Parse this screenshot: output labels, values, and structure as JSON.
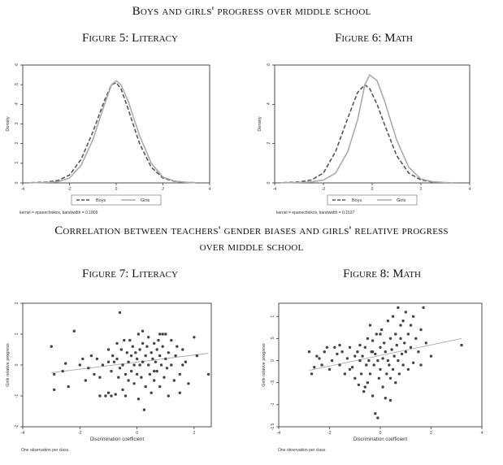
{
  "section1_title": "Boys and girls' progress over middle school",
  "section2_title_line1": "Correlation between teachers' gender biases and girls' relative progress",
  "section2_title_line2": "over middle school",
  "density_note_literacy": "kernel = epanechnikov, bandwidth = 0.1809",
  "density_note_math": "kernel = epanechnikov, bandwidth = 0.1537",
  "scatter_note": "One observation per class.",
  "colors": {
    "boys": "#555555",
    "girls": "#aaaaaa",
    "points": "#444444",
    "fit": "#aaaaaa",
    "frame": "#222222"
  },
  "chart_data": [
    {
      "id": "fig5",
      "figure_title": "Figure 5: Literacy",
      "type": "line",
      "ylabel": "Density",
      "xlim": [
        -4,
        4
      ],
      "ylim": [
        0,
        0.6
      ],
      "xticks": [
        -4,
        -2,
        0,
        2,
        4
      ],
      "xtick_labels": [
        "-4",
        "-2",
        "0",
        "2",
        "4"
      ],
      "yticks": [
        0,
        0.1,
        0.2,
        0.3,
        0.4,
        0.5,
        0.6
      ],
      "ytick_labels": [
        "0",
        ".1",
        ".2",
        ".3",
        ".4",
        ".5",
        ".6"
      ],
      "legend": [
        "Boys",
        "Girls"
      ],
      "legend_position": "bottom",
      "series": [
        {
          "name": "Boys",
          "style": "dashed",
          "x": [
            -3.9,
            -3.0,
            -2.5,
            -2.0,
            -1.5,
            -1.0,
            -0.5,
            -0.2,
            0.0,
            0.2,
            0.5,
            1.0,
            1.5,
            2.0,
            2.5,
            3.0,
            3.4
          ],
          "y": [
            0.0,
            0.004,
            0.012,
            0.04,
            0.12,
            0.26,
            0.42,
            0.5,
            0.51,
            0.48,
            0.38,
            0.2,
            0.08,
            0.025,
            0.008,
            0.003,
            0.001
          ]
        },
        {
          "name": "Girls",
          "style": "solid",
          "x": [
            -3.9,
            -3.0,
            -2.5,
            -2.0,
            -1.5,
            -1.0,
            -0.5,
            -0.2,
            0.0,
            0.2,
            0.5,
            1.0,
            1.5,
            2.0,
            2.5,
            3.0,
            3.4
          ],
          "y": [
            0.0,
            0.002,
            0.006,
            0.025,
            0.09,
            0.22,
            0.4,
            0.5,
            0.52,
            0.5,
            0.42,
            0.24,
            0.1,
            0.03,
            0.009,
            0.003,
            0.001
          ]
        }
      ]
    },
    {
      "id": "fig6",
      "figure_title": "Figure 6: Math",
      "type": "line",
      "ylabel": "Density",
      "xlim": [
        -4,
        4
      ],
      "ylim": [
        0,
        0.6
      ],
      "xticks": [
        -4,
        -2,
        0,
        2,
        4
      ],
      "xtick_labels": [
        "-4",
        "-2",
        "0",
        "2",
        "4"
      ],
      "yticks": [
        0,
        0.2,
        0.4,
        0.6
      ],
      "ytick_labels": [
        "0",
        ".2",
        ".4",
        ".6"
      ],
      "legend": [
        "Boys",
        "Girls"
      ],
      "legend_position": "bottom",
      "series": [
        {
          "name": "Boys",
          "style": "dashed",
          "x": [
            -3.9,
            -3.0,
            -2.5,
            -2.0,
            -1.5,
            -1.0,
            -0.6,
            -0.3,
            -0.1,
            0.2,
            0.5,
            1.0,
            1.5,
            2.0,
            2.5,
            3.0,
            3.5
          ],
          "y": [
            0.0,
            0.005,
            0.015,
            0.05,
            0.16,
            0.33,
            0.46,
            0.5,
            0.48,
            0.4,
            0.3,
            0.14,
            0.05,
            0.015,
            0.004,
            0.001,
            0.0
          ]
        },
        {
          "name": "Girls",
          "style": "solid",
          "x": [
            -3.9,
            -3.0,
            -2.5,
            -2.0,
            -1.5,
            -1.0,
            -0.6,
            -0.3,
            -0.1,
            0.2,
            0.5,
            1.0,
            1.5,
            2.0,
            2.5,
            3.0,
            3.5
          ],
          "y": [
            0.0,
            0.002,
            0.005,
            0.015,
            0.05,
            0.16,
            0.32,
            0.5,
            0.55,
            0.52,
            0.42,
            0.22,
            0.08,
            0.02,
            0.006,
            0.002,
            0.0
          ]
        }
      ]
    },
    {
      "id": "fig7",
      "figure_title": "Figure 7: Literacy",
      "type": "scatter",
      "xlabel": "Discrimination coefficient",
      "ylabel": "Girls relative progress",
      "xlim": [
        -4,
        2.6
      ],
      "ylim": [
        -2,
        2
      ],
      "xticks": [
        -4,
        -2,
        0,
        2
      ],
      "xtick_labels": [
        "-4",
        "-2",
        "0",
        "2"
      ],
      "yticks": [
        -2,
        -1,
        0,
        1,
        2
      ],
      "ytick_labels": [
        "-2",
        "-1",
        "0",
        "1",
        "2"
      ],
      "fit_line": {
        "x": [
          -3.0,
          2.5
        ],
        "y": [
          -0.25,
          0.38
        ]
      },
      "points": [
        [
          -3.0,
          0.6
        ],
        [
          -2.9,
          -0.8
        ],
        [
          -2.9,
          -0.3
        ],
        [
          -2.5,
          0.05
        ],
        [
          -2.4,
          -0.7
        ],
        [
          -2.2,
          1.1
        ],
        [
          -2.0,
          0.0
        ],
        [
          -1.9,
          0.2
        ],
        [
          -1.8,
          -0.5
        ],
        [
          -1.7,
          -0.1
        ],
        [
          -1.6,
          0.3
        ],
        [
          -1.5,
          -0.3
        ],
        [
          -1.4,
          0.2
        ],
        [
          -1.3,
          -0.4
        ],
        [
          -1.2,
          0.0
        ],
        [
          -1.1,
          -1.0
        ],
        [
          -1.0,
          -0.9
        ],
        [
          -1.0,
          0.5
        ],
        [
          -0.9,
          -1.0
        ],
        [
          -0.9,
          -0.2
        ],
        [
          -0.85,
          0.3
        ],
        [
          -0.8,
          0.1
        ],
        [
          -0.75,
          -0.95
        ],
        [
          -0.7,
          0.2
        ],
        [
          -0.65,
          -0.4
        ],
        [
          -0.6,
          1.7
        ],
        [
          -0.6,
          -0.1
        ],
        [
          -0.55,
          0.5
        ],
        [
          -0.5,
          -0.8
        ],
        [
          -0.5,
          0.0
        ],
        [
          -0.45,
          0.8
        ],
        [
          -0.4,
          -0.3
        ],
        [
          -0.35,
          0.4
        ],
        [
          -0.3,
          0.1
        ],
        [
          -0.3,
          -0.5
        ],
        [
          -0.25,
          0.8
        ],
        [
          -0.2,
          -0.2
        ],
        [
          -0.2,
          0.3
        ],
        [
          -0.15,
          0.6
        ],
        [
          -0.1,
          0.0
        ],
        [
          -0.1,
          -0.6
        ],
        [
          -0.05,
          0.4
        ],
        [
          0.0,
          0.2
        ],
        [
          0.0,
          -0.3
        ],
        [
          0.05,
          1.0
        ],
        [
          0.05,
          -1.1
        ],
        [
          0.1,
          0.0
        ],
        [
          0.1,
          0.5
        ],
        [
          0.15,
          -0.4
        ],
        [
          0.2,
          0.1
        ],
        [
          0.2,
          1.1
        ],
        [
          0.25,
          -1.45
        ],
        [
          0.3,
          0.3
        ],
        [
          0.3,
          -0.7
        ],
        [
          0.35,
          0.6
        ],
        [
          0.4,
          0.0
        ],
        [
          0.4,
          0.9
        ],
        [
          0.45,
          -0.3
        ],
        [
          0.5,
          0.4
        ],
        [
          0.5,
          -0.9
        ],
        [
          0.55,
          0.2
        ],
        [
          0.6,
          0.7
        ],
        [
          0.6,
          -0.5
        ],
        [
          0.65,
          0.1
        ],
        [
          0.7,
          0.5
        ],
        [
          0.7,
          -0.2
        ],
        [
          0.75,
          0.8
        ],
        [
          0.8,
          0.3
        ],
        [
          0.8,
          -0.7
        ],
        [
          0.85,
          0.0
        ],
        [
          0.9,
          0.6
        ],
        [
          0.9,
          1.0
        ],
        [
          0.95,
          -0.4
        ],
        [
          1.0,
          0.2
        ],
        [
          1.0,
          1.0
        ],
        [
          1.05,
          -0.1
        ],
        [
          1.1,
          0.4
        ],
        [
          1.1,
          -1.0
        ],
        [
          1.2,
          0.8
        ],
        [
          1.2,
          0.0
        ],
        [
          1.3,
          -0.5
        ],
        [
          1.35,
          0.3
        ],
        [
          1.4,
          0.6
        ],
        [
          1.5,
          -0.3
        ],
        [
          1.6,
          0.5
        ],
        [
          1.7,
          0.1
        ],
        [
          1.8,
          -0.6
        ],
        [
          2.0,
          0.9
        ],
        [
          2.1,
          0.3
        ],
        [
          2.5,
          -0.3
        ],
        [
          -1.3,
          -1.0
        ],
        [
          -0.4,
          -1.0
        ],
        [
          0.6,
          -0.2
        ],
        [
          1.5,
          -0.9
        ],
        [
          -2.6,
          -0.2
        ],
        [
          -1.0,
          0.1
        ],
        [
          -0.7,
          0.7
        ],
        [
          0.2,
          0.7
        ],
        [
          0.8,
          1.0
        ],
        [
          1.6,
          0.0
        ]
      ]
    },
    {
      "id": "fig8",
      "figure_title": "Figure 8: Math",
      "type": "scatter",
      "xlabel": "Discrimination coefficient",
      "ylabel": "Girls relative progress",
      "xlim": [
        -4,
        4
      ],
      "ylim": [
        -1.5,
        1.3
      ],
      "xticks": [
        -4,
        -2,
        0,
        2,
        4
      ],
      "xtick_labels": [
        "-4",
        "-2",
        "0",
        "2",
        "4"
      ],
      "yticks": [
        -1.5,
        -1,
        -0.5,
        0,
        0.5,
        1
      ],
      "ytick_labels": [
        "-1.5",
        "-1",
        "-.5",
        "0",
        ".5",
        "1"
      ],
      "fit_line": {
        "x": [
          -2.8,
          3.2
        ],
        "y": [
          -0.22,
          0.5
        ]
      },
      "points": [
        [
          -2.8,
          0.2
        ],
        [
          -2.7,
          -0.3
        ],
        [
          -2.6,
          -0.15
        ],
        [
          -2.5,
          0.1
        ],
        [
          -2.4,
          0.05
        ],
        [
          -2.3,
          -0.1
        ],
        [
          -2.1,
          0.3
        ],
        [
          -2.0,
          -0.2
        ],
        [
          -1.9,
          0.0
        ],
        [
          -1.8,
          0.3
        ],
        [
          -1.7,
          0.15
        ],
        [
          -1.6,
          -0.1
        ],
        [
          -1.5,
          0.2
        ],
        [
          -1.4,
          -0.3
        ],
        [
          -1.3,
          0.05
        ],
        [
          -1.2,
          0.3
        ],
        [
          -1.1,
          -0.15
        ],
        [
          -1.0,
          0.1
        ],
        [
          -1.0,
          -0.4
        ],
        [
          -0.9,
          0.2
        ],
        [
          -0.85,
          -0.55
        ],
        [
          -0.8,
          0.0
        ],
        [
          -0.8,
          0.35
        ],
        [
          -0.75,
          -0.3
        ],
        [
          -0.7,
          0.1
        ],
        [
          -0.65,
          -0.7
        ],
        [
          -0.6,
          0.3
        ],
        [
          -0.55,
          -0.1
        ],
        [
          -0.5,
          0.5
        ],
        [
          -0.5,
          -0.5
        ],
        [
          -0.45,
          0.0
        ],
        [
          -0.4,
          0.8
        ],
        [
          -0.4,
          -0.3
        ],
        [
          -0.35,
          0.2
        ],
        [
          -0.3,
          -0.8
        ],
        [
          -0.3,
          0.45
        ],
        [
          -0.25,
          -0.1
        ],
        [
          -0.2,
          0.15
        ],
        [
          -0.2,
          -1.2
        ],
        [
          -0.15,
          0.6
        ],
        [
          -0.1,
          -1.3
        ],
        [
          -0.1,
          0.0
        ],
        [
          -0.05,
          -0.4
        ],
        [
          0.0,
          0.3
        ],
        [
          0.0,
          -0.2
        ],
        [
          0.05,
          0.7
        ],
        [
          0.1,
          0.05
        ],
        [
          0.1,
          -0.6
        ],
        [
          0.15,
          0.4
        ],
        [
          0.2,
          -0.85
        ],
        [
          0.2,
          0.2
        ],
        [
          0.25,
          -0.3
        ],
        [
          0.3,
          0.9
        ],
        [
          0.3,
          0.0
        ],
        [
          0.35,
          -0.1
        ],
        [
          0.4,
          0.5
        ],
        [
          0.4,
          -0.4
        ],
        [
          0.45,
          0.25
        ],
        [
          0.5,
          1.0
        ],
        [
          0.5,
          -0.2
        ],
        [
          0.55,
          0.1
        ],
        [
          0.6,
          0.6
        ],
        [
          0.6,
          -0.5
        ],
        [
          0.65,
          0.35
        ],
        [
          0.7,
          1.2
        ],
        [
          0.7,
          0.0
        ],
        [
          0.75,
          -0.3
        ],
        [
          0.8,
          0.5
        ],
        [
          0.8,
          0.8
        ],
        [
          0.85,
          0.15
        ],
        [
          0.9,
          -0.1
        ],
        [
          0.95,
          0.4
        ],
        [
          1.0,
          1.1
        ],
        [
          1.0,
          0.2
        ],
        [
          1.1,
          -0.2
        ],
        [
          1.1,
          0.6
        ],
        [
          1.2,
          0.3
        ],
        [
          1.3,
          1.0
        ],
        [
          1.3,
          -0.05
        ],
        [
          1.4,
          0.5
        ],
        [
          1.5,
          0.2
        ],
        [
          1.6,
          0.7
        ],
        [
          1.6,
          -0.1
        ],
        [
          1.7,
          1.2
        ],
        [
          1.8,
          0.4
        ],
        [
          2.0,
          0.1
        ],
        [
          -1.2,
          -0.2
        ],
        [
          -0.6,
          -0.6
        ],
        [
          0.4,
          -0.9
        ],
        [
          0.9,
          0.9
        ],
        [
          -2.2,
          0.2
        ],
        [
          -1.6,
          0.35
        ],
        [
          0.0,
          0.6
        ],
        [
          1.2,
          0.8
        ],
        [
          -0.3,
          0.2
        ],
        [
          3.2,
          0.35
        ]
      ]
    }
  ]
}
